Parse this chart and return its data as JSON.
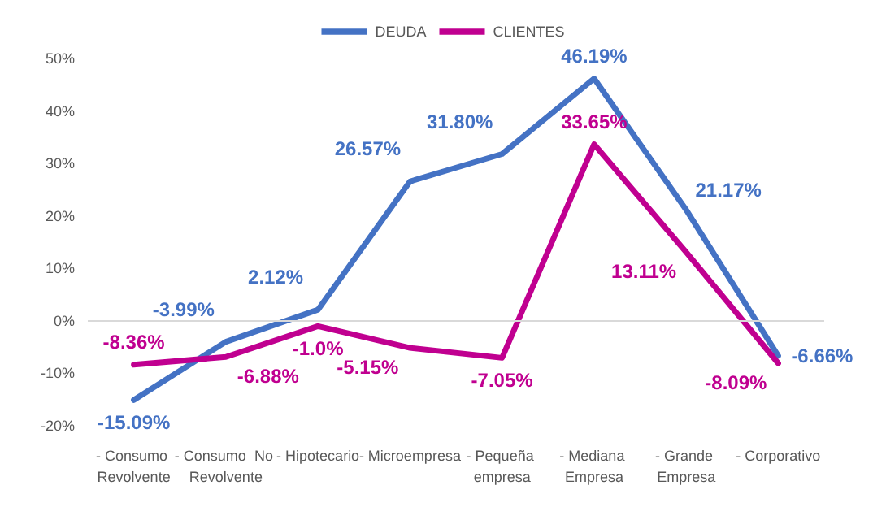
{
  "chart_data": {
    "type": "line",
    "categories": [
      "- Consumo Revolvente",
      "- Consumo  No Revolvente",
      "- Hipotecario",
      "- Microempresa",
      "- Pequeña empresa",
      "- Mediana Empresa",
      "- Grande Empresa",
      "- Corporativo"
    ],
    "series": [
      {
        "name": "DEUDA",
        "color": "#4472c4",
        "values": [
          -15.09,
          -3.99,
          2.12,
          26.57,
          31.8,
          46.19,
          21.17,
          -6.66
        ],
        "value_labels": [
          "-15.09%",
          "-3.99%",
          "2.12%",
          "26.57%",
          "31.80%",
          "46.19%",
          "21.17%",
          "-6.66%"
        ]
      },
      {
        "name": "CLIENTES",
        "color": "#c00090",
        "values": [
          -8.36,
          -6.88,
          -1.0,
          -5.15,
          -7.05,
          33.65,
          13.11,
          -8.09
        ],
        "value_labels": [
          "-8.36%",
          "-6.88%",
          "-1.0%",
          "-5.15%",
          "-7.05%",
          "33.65%",
          "13.11%",
          "-8.09%"
        ]
      }
    ],
    "ylim": [
      -20,
      50
    ],
    "yticks": [
      {
        "value": -20,
        "label": "-20%"
      },
      {
        "value": -10,
        "label": "-10%"
      },
      {
        "value": 0,
        "label": "0%"
      },
      {
        "value": 10,
        "label": "10%"
      },
      {
        "value": 20,
        "label": "20%"
      },
      {
        "value": 30,
        "label": "30%"
      },
      {
        "value": 40,
        "label": "40%"
      },
      {
        "value": 50,
        "label": "50%"
      }
    ],
    "grid": false,
    "ref_lines": [
      {
        "axis": "y",
        "value": 0,
        "color": "#d9d9d9"
      }
    ],
    "legend": "top",
    "marker": "none",
    "line_style": "solid"
  }
}
